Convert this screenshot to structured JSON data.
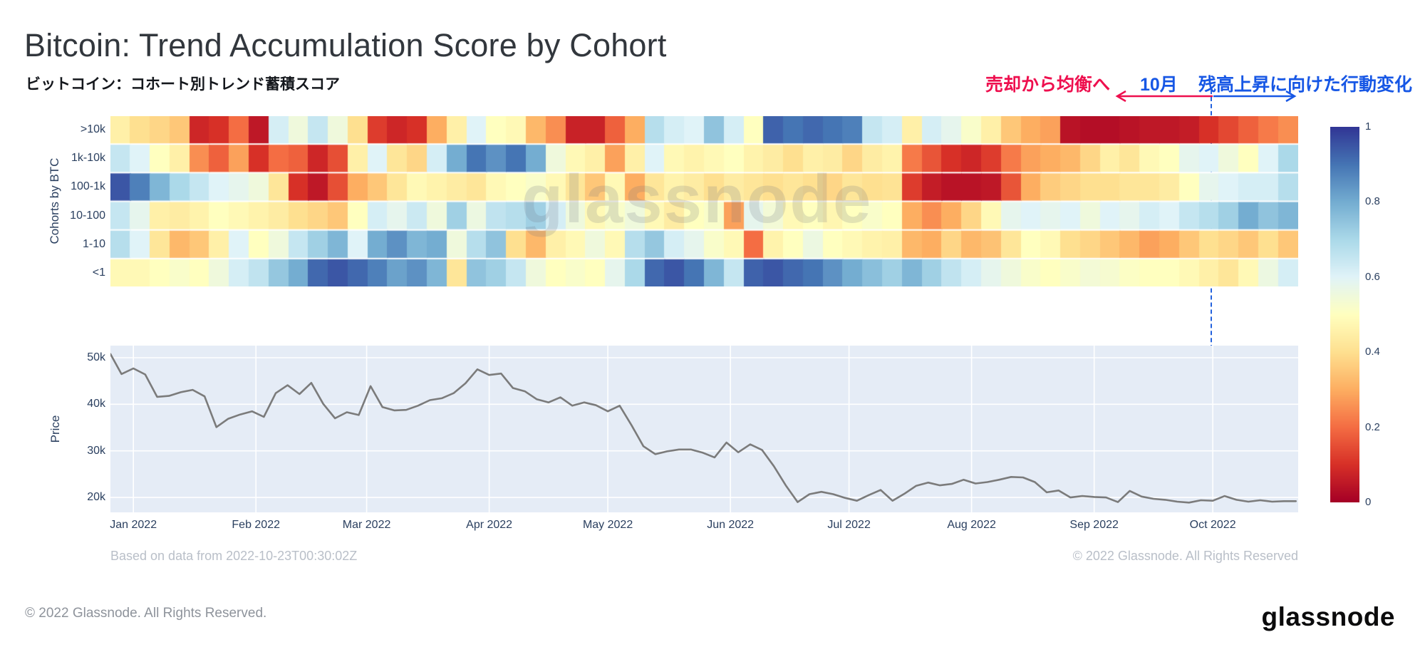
{
  "header": {
    "title": "Bitcoin: Trend Accumulation Score by Cohort",
    "subtitle": "ビットコイン：コホート別トレンド蓄積スコア"
  },
  "annotations": {
    "left_label": "売却から均衡へ",
    "left_color": "#ee0f4e",
    "center_label": "10月",
    "right_label": "残高上昇に向けた行動変化",
    "right_color": "#1757e5",
    "marker_color": "#2361dd"
  },
  "watermark": "glassnode",
  "footnotes": {
    "based_on": "Based on data from 2022-10-23T00:30:02Z",
    "chart_copyright": "© 2022 Glassnode. All Rights Reserved"
  },
  "footer": {
    "copyright": "© 2022 Glassnode. All Rights Reserved.",
    "logo": "glassnode"
  },
  "chart_data": [
    {
      "type": "heatmap",
      "title": "Trend Accumulation Score by Cohort (0 = distribution/red, 1 = accumulation/blue)",
      "ylabel": "Cohorts by BTC",
      "categories_y": [
        ">10k",
        "1k-10k",
        "100-1k",
        "10-100",
        "1-10",
        "<1"
      ],
      "x_ticks": [
        {
          "label": "Jan 2022",
          "day": 0
        },
        {
          "label": "Feb 2022",
          "day": 31
        },
        {
          "label": "Mar 2022",
          "day": 59
        },
        {
          "label": "Apr 2022",
          "day": 90
        },
        {
          "label": "May 2022",
          "day": 120
        },
        {
          "label": "Jun 2022",
          "day": 151
        },
        {
          "label": "Jul 2022",
          "day": 181
        },
        {
          "label": "Aug 2022",
          "day": 212
        },
        {
          "label": "Sep 2022",
          "day": 243
        },
        {
          "label": "Oct 2022",
          "day": 273
        }
      ],
      "x_range_days_from_jan1": [
        -5.8,
        294.6
      ],
      "zmin": 0,
      "zmax": 1,
      "colorscale_RdYlBu": [
        [
          0.0,
          "#a50026"
        ],
        [
          0.1,
          "#d73027"
        ],
        [
          0.2,
          "#f46d43"
        ],
        [
          0.3,
          "#fdae61"
        ],
        [
          0.4,
          "#fee090"
        ],
        [
          0.5,
          "#ffffbf"
        ],
        [
          0.6,
          "#e0f3f8"
        ],
        [
          0.7,
          "#abd9e9"
        ],
        [
          0.8,
          "#74add1"
        ],
        [
          0.9,
          "#4575b4"
        ],
        [
          1.0,
          "#313695"
        ]
      ],
      "colorbar_ticks": [
        {
          "label": "1",
          "value": 1
        },
        {
          "label": "0.8",
          "value": 0.8
        },
        {
          "label": "0.6",
          "value": 0.6
        },
        {
          "label": "0.4",
          "value": 0.4
        },
        {
          "label": "0.2",
          "value": 0.2
        },
        {
          "label": "0",
          "value": 0
        }
      ],
      "series": [
        {
          "name": ">10k",
          "values": [
            0.45,
            0.4,
            0.38,
            0.35,
            0.08,
            0.1,
            0.2,
            0.05,
            0.62,
            0.55,
            0.65,
            0.55,
            0.4,
            0.12,
            0.08,
            0.1,
            0.3,
            0.45,
            0.6,
            0.5,
            0.48,
            0.32,
            0.25,
            0.07,
            0.07,
            0.18,
            0.3,
            0.68,
            0.62,
            0.6,
            0.75,
            0.62,
            0.5,
            0.93,
            0.9,
            0.92,
            0.9,
            0.88,
            0.65,
            0.62,
            0.45,
            0.62,
            0.58,
            0.52,
            0.45,
            0.35,
            0.3,
            0.28,
            0.04,
            0.03,
            0.03,
            0.04,
            0.05,
            0.05,
            0.06,
            0.1,
            0.14,
            0.18,
            0.22,
            0.25
          ]
        },
        {
          "name": "1k-10k",
          "values": [
            0.65,
            0.6,
            0.5,
            0.45,
            0.25,
            0.18,
            0.28,
            0.1,
            0.2,
            0.18,
            0.08,
            0.15,
            0.45,
            0.6,
            0.42,
            0.38,
            0.62,
            0.8,
            0.9,
            0.85,
            0.9,
            0.8,
            0.55,
            0.48,
            0.45,
            0.28,
            0.45,
            0.6,
            0.48,
            0.46,
            0.48,
            0.5,
            0.46,
            0.44,
            0.4,
            0.45,
            0.44,
            0.38,
            0.44,
            0.46,
            0.22,
            0.16,
            0.1,
            0.08,
            0.12,
            0.22,
            0.28,
            0.3,
            0.32,
            0.38,
            0.45,
            0.42,
            0.48,
            0.5,
            0.58,
            0.6,
            0.55,
            0.5,
            0.6,
            0.7
          ]
        },
        {
          "name": "100-1k",
          "values": [
            0.95,
            0.88,
            0.78,
            0.7,
            0.65,
            0.6,
            0.58,
            0.55,
            0.42,
            0.1,
            0.05,
            0.15,
            0.3,
            0.35,
            0.42,
            0.48,
            0.46,
            0.44,
            0.42,
            0.48,
            0.5,
            0.52,
            0.48,
            0.42,
            0.35,
            0.48,
            0.3,
            0.42,
            0.46,
            0.44,
            0.4,
            0.44,
            0.42,
            0.4,
            0.42,
            0.4,
            0.38,
            0.42,
            0.4,
            0.41,
            0.12,
            0.06,
            0.04,
            0.04,
            0.05,
            0.16,
            0.3,
            0.36,
            0.38,
            0.4,
            0.4,
            0.42,
            0.42,
            0.44,
            0.5,
            0.58,
            0.6,
            0.62,
            0.62,
            0.68
          ]
        },
        {
          "name": "10-100",
          "values": [
            0.65,
            0.58,
            0.45,
            0.44,
            0.46,
            0.5,
            0.48,
            0.46,
            0.44,
            0.4,
            0.38,
            0.35,
            0.5,
            0.62,
            0.58,
            0.64,
            0.55,
            0.72,
            0.56,
            0.66,
            0.68,
            0.72,
            0.62,
            0.55,
            0.48,
            0.52,
            0.55,
            0.48,
            0.44,
            0.5,
            0.52,
            0.28,
            0.58,
            0.54,
            0.48,
            0.5,
            0.47,
            0.5,
            0.52,
            0.5,
            0.3,
            0.25,
            0.3,
            0.38,
            0.48,
            0.58,
            0.6,
            0.58,
            0.6,
            0.55,
            0.6,
            0.58,
            0.62,
            0.6,
            0.65,
            0.68,
            0.72,
            0.8,
            0.75,
            0.78
          ]
        },
        {
          "name": "1-10",
          "values": [
            0.68,
            0.6,
            0.42,
            0.32,
            0.35,
            0.45,
            0.6,
            0.5,
            0.55,
            0.65,
            0.72,
            0.78,
            0.6,
            0.8,
            0.85,
            0.78,
            0.8,
            0.55,
            0.68,
            0.75,
            0.4,
            0.32,
            0.45,
            0.48,
            0.55,
            0.48,
            0.68,
            0.74,
            0.62,
            0.58,
            0.52,
            0.48,
            0.2,
            0.46,
            0.5,
            0.56,
            0.5,
            0.48,
            0.46,
            0.45,
            0.32,
            0.3,
            0.38,
            0.32,
            0.34,
            0.42,
            0.5,
            0.48,
            0.4,
            0.38,
            0.35,
            0.32,
            0.28,
            0.3,
            0.35,
            0.4,
            0.38,
            0.35,
            0.4,
            0.35
          ]
        },
        {
          "name": "<1",
          "values": [
            0.48,
            0.48,
            0.5,
            0.52,
            0.5,
            0.55,
            0.62,
            0.66,
            0.74,
            0.8,
            0.92,
            0.95,
            0.92,
            0.88,
            0.82,
            0.85,
            0.78,
            0.42,
            0.75,
            0.72,
            0.65,
            0.55,
            0.5,
            0.52,
            0.5,
            0.58,
            0.7,
            0.92,
            0.95,
            0.9,
            0.78,
            0.65,
            0.93,
            0.95,
            0.92,
            0.9,
            0.85,
            0.8,
            0.76,
            0.72,
            0.78,
            0.72,
            0.66,
            0.62,
            0.58,
            0.55,
            0.52,
            0.5,
            0.52,
            0.54,
            0.53,
            0.51,
            0.5,
            0.5,
            0.48,
            0.45,
            0.42,
            0.48,
            0.56,
            0.62
          ]
        }
      ],
      "marker_line_day": 273
    },
    {
      "type": "line",
      "name": "BTC Price",
      "ylabel": "Price",
      "plot_bg": "#E5ECF6",
      "grid_color": "#ffffff",
      "line_color": "#7b7b7b",
      "ylim_k": [
        16.8,
        52.6
      ],
      "y_ticks": [
        {
          "label": "50k",
          "value": 50
        },
        {
          "label": "40k",
          "value": 40
        },
        {
          "label": "30k",
          "value": 30
        },
        {
          "label": "20k",
          "value": 20
        }
      ],
      "x_start_day": -6,
      "x_step_days": 3,
      "values_usd_k": [
        50.8,
        46.5,
        47.7,
        46.4,
        41.6,
        41.8,
        42.6,
        43.1,
        41.7,
        35.1,
        36.9,
        37.8,
        38.5,
        37.3,
        42.4,
        44.1,
        42.2,
        44.6,
        40.1,
        37.0,
        38.3,
        37.7,
        43.9,
        39.4,
        38.7,
        38.8,
        39.7,
        40.9,
        41.3,
        42.4,
        44.5,
        47.5,
        46.3,
        46.6,
        43.5,
        42.8,
        41.1,
        40.4,
        41.5,
        39.7,
        40.4,
        39.8,
        38.5,
        39.7,
        35.5,
        31.0,
        29.3,
        29.9,
        30.3,
        30.3,
        29.6,
        28.6,
        31.8,
        29.7,
        31.4,
        30.2,
        26.7,
        22.6,
        19.0,
        20.7,
        21.2,
        20.7,
        19.9,
        19.3,
        20.5,
        21.6,
        19.3,
        20.8,
        22.5,
        23.2,
        22.6,
        22.9,
        23.8,
        23.0,
        23.3,
        23.8,
        24.4,
        24.3,
        23.3,
        21.1,
        21.5,
        20.0,
        20.3,
        20.1,
        20.0,
        19.0,
        21.4,
        20.2,
        19.7,
        19.5,
        19.1,
        18.9,
        19.4,
        19.3,
        20.3,
        19.5,
        19.1,
        19.4,
        19.1,
        19.2,
        19.2
      ]
    }
  ]
}
